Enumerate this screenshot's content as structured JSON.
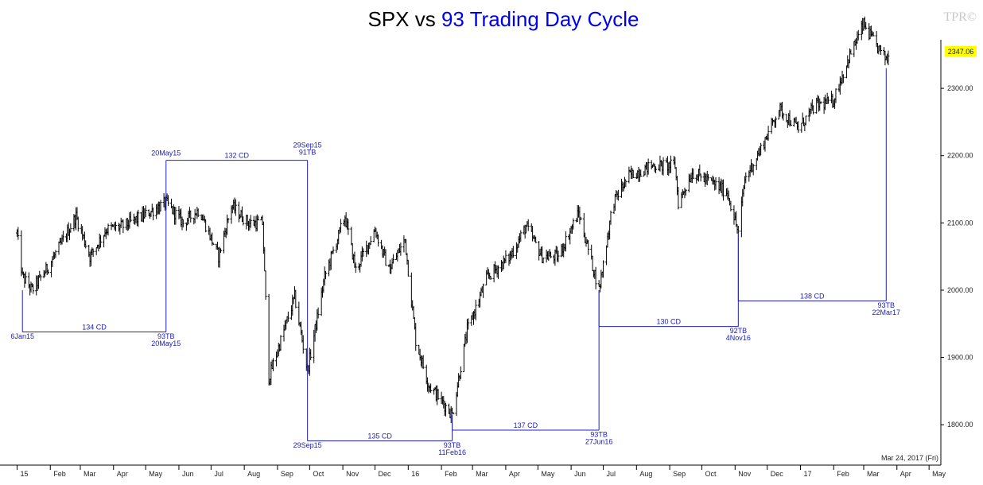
{
  "title_prefix": "SPX vs ",
  "title_highlight": "93 Trading Day Cycle",
  "watermark": "TPR©",
  "date_stamp": "Mar 24, 2017 (Fri)",
  "last_price_label": "2347.06",
  "colors": {
    "price": "#000000",
    "cycle": "#2020c0",
    "highlight": "#ffff00",
    "title_accent": "#0000ee"
  },
  "chart_data": {
    "type": "ohlc",
    "ylim": [
      1740,
      2410
    ],
    "y_ticks": [
      "1800.00",
      "1900.00",
      "2000.00",
      "2100.00",
      "2200.00",
      "2300.00"
    ],
    "x_ticks": [
      "15",
      "Feb",
      "Mar",
      "Apr",
      "May",
      "Jun",
      "Jul",
      "Aug",
      "Sep",
      "Oct",
      "Nov",
      "Dec",
      "16",
      "Feb",
      "Mar",
      "Apr",
      "May",
      "Jun",
      "Jul",
      "Aug",
      "Sep",
      "Oct",
      "Nov",
      "Dec",
      "17",
      "Feb",
      "Mar",
      "Apr",
      "May"
    ],
    "price_path": [
      [
        "2015-01-01",
        2085
      ],
      [
        "2015-01-06",
        2020
      ],
      [
        "2015-01-15",
        2000
      ],
      [
        "2015-01-28",
        2030
      ],
      [
        "2015-02-10",
        2065
      ],
      [
        "2015-02-25",
        2110
      ],
      [
        "2015-03-10",
        2050
      ],
      [
        "2015-03-25",
        2090
      ],
      [
        "2015-04-10",
        2095
      ],
      [
        "2015-04-28",
        2110
      ],
      [
        "2015-05-20",
        2130
      ],
      [
        "2015-06-05",
        2100
      ],
      [
        "2015-06-20",
        2120
      ],
      [
        "2015-07-08",
        2050
      ],
      [
        "2015-07-20",
        2125
      ],
      [
        "2015-08-05",
        2100
      ],
      [
        "2015-08-18",
        2100
      ],
      [
        "2015-08-24",
        1870
      ],
      [
        "2015-09-05",
        1930
      ],
      [
        "2015-09-17",
        1990
      ],
      [
        "2015-09-29",
        1880
      ],
      [
        "2015-10-15",
        2020
      ],
      [
        "2015-11-03",
        2110
      ],
      [
        "2015-11-13",
        2030
      ],
      [
        "2015-12-01",
        2090
      ],
      [
        "2015-12-14",
        2030
      ],
      [
        "2015-12-29",
        2075
      ],
      [
        "2016-01-08",
        1925
      ],
      [
        "2016-01-20",
        1860
      ],
      [
        "2016-02-11",
        1815
      ],
      [
        "2016-02-25",
        1940
      ],
      [
        "2016-03-15",
        2020
      ],
      [
        "2016-04-05",
        2050
      ],
      [
        "2016-04-20",
        2095
      ],
      [
        "2016-05-05",
        2050
      ],
      [
        "2016-05-20",
        2050
      ],
      [
        "2016-06-08",
        2115
      ],
      [
        "2016-06-27",
        2000
      ],
      [
        "2016-07-10",
        2130
      ],
      [
        "2016-07-25",
        2170
      ],
      [
        "2016-08-15",
        2185
      ],
      [
        "2016-09-06",
        2185
      ],
      [
        "2016-09-09",
        2130
      ],
      [
        "2016-09-22",
        2175
      ],
      [
        "2016-10-10",
        2160
      ],
      [
        "2016-10-25",
        2145
      ],
      [
        "2016-11-04",
        2085
      ],
      [
        "2016-11-10",
        2165
      ],
      [
        "2016-11-25",
        2210
      ],
      [
        "2016-12-12",
        2270
      ],
      [
        "2016-12-30",
        2240
      ],
      [
        "2017-01-15",
        2275
      ],
      [
        "2017-01-31",
        2280
      ],
      [
        "2017-02-15",
        2345
      ],
      [
        "2017-03-01",
        2395
      ],
      [
        "2017-03-10",
        2370
      ],
      [
        "2017-03-21",
        2345
      ],
      [
        "2017-03-24",
        2347
      ]
    ],
    "cycle_segments": [
      {
        "name": "134 CD",
        "from": "2015-01-06",
        "to": "2015-05-20",
        "level": 1938,
        "from_anchor": 2000,
        "to_anchor": 2130,
        "label_dir": "below"
      },
      {
        "name": "132 CD",
        "from": "2015-05-20",
        "to": "2015-09-29",
        "level": 2193,
        "from_anchor": 2130,
        "to_anchor": 1880,
        "label_dir": "above"
      },
      {
        "name": "135 CD",
        "from": "2015-09-29",
        "to": "2016-02-11",
        "level": 1776,
        "from_anchor": 1880,
        "to_anchor": 1815,
        "label_dir": "below"
      },
      {
        "name": "137 CD",
        "from": "2016-02-11",
        "to": "2016-06-27",
        "level": 1792,
        "from_anchor": 1815,
        "to_anchor": 2000,
        "label_dir": "above"
      },
      {
        "name": "130 CD",
        "from": "2016-06-27",
        "to": "2016-11-04",
        "level": 1946,
        "from_anchor": 2000,
        "to_anchor": 2085,
        "label_dir": "above"
      },
      {
        "name": "138 CD",
        "from": "2016-11-04",
        "to": "2017-03-22",
        "level": 1984,
        "from_anchor": 2085,
        "to_anchor": 2330,
        "label_dir": "above"
      }
    ],
    "pivot_labels": [
      {
        "text": [
          "6Jan15"
        ],
        "date": "2015-01-06",
        "level": 1928,
        "align": "middle"
      },
      {
        "text": [
          "20May15"
        ],
        "date": "2015-05-20",
        "level": 2200,
        "align": "middle"
      },
      {
        "text": [
          "93TB",
          "20May15"
        ],
        "date": "2015-05-20",
        "level": 1928,
        "align": "middle"
      },
      {
        "text": [
          "29Sep15",
          "91TB"
        ],
        "date": "2015-09-29",
        "level": 2212,
        "align": "middle"
      },
      {
        "text": [
          "29Sep15"
        ],
        "date": "2015-09-29",
        "level": 1766,
        "align": "middle"
      },
      {
        "text": [
          "93TB",
          "11Feb16"
        ],
        "date": "2016-02-11",
        "level": 1766,
        "align": "middle"
      },
      {
        "text": [
          "93TB",
          "27Jun16"
        ],
        "date": "2016-06-27",
        "level": 1782,
        "align": "middle"
      },
      {
        "text": [
          "92TB",
          "4Nov16"
        ],
        "date": "2016-11-04",
        "level": 1936,
        "align": "middle"
      },
      {
        "text": [
          "93TB",
          "22Mar17"
        ],
        "date": "2017-03-22",
        "level": 1974,
        "align": "middle"
      }
    ]
  }
}
